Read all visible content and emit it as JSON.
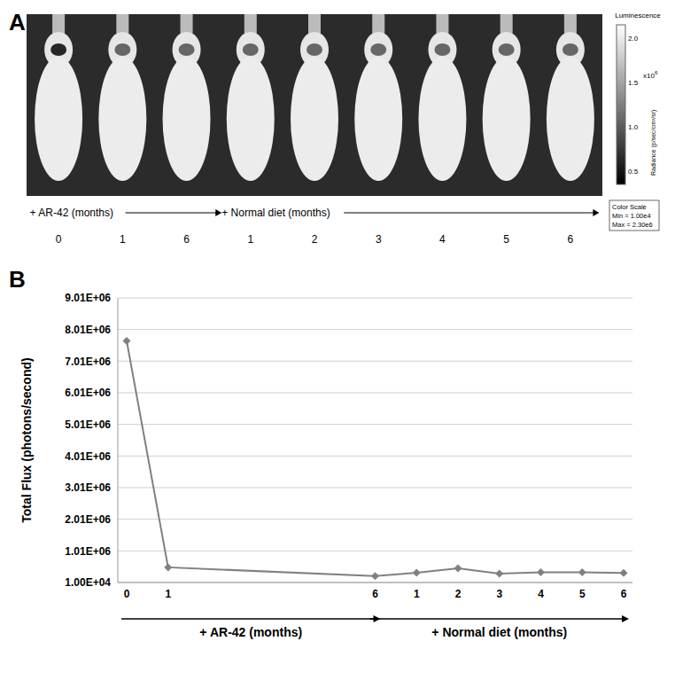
{
  "panel_a": {
    "label": "A",
    "timeline": [
      {
        "label": "+ AR-42 (months)",
        "times": [
          "0",
          "1",
          "6"
        ]
      },
      {
        "label": "+ Normal diet (months)",
        "times": [
          "1",
          "2",
          "3",
          "4",
          "5",
          "6"
        ]
      }
    ],
    "color_scale": {
      "title": "Luminescence",
      "ticks": [
        "2.0",
        "1.5",
        "1.0",
        "0.5"
      ],
      "multiplier": "x10",
      "exponent": "6",
      "unit": "Radiance (p/sec/cm²/sr)",
      "box": [
        "Color Scale",
        "Min = 1.00e4",
        "Max = 2.30e6"
      ]
    }
  },
  "chart_data": {
    "type": "line",
    "title": "B",
    "y_label": "Total Flux (photons/second)",
    "categories": [
      "0",
      "1",
      null,
      null,
      null,
      null,
      "6",
      "1",
      "2",
      "3",
      "4",
      "5",
      "6"
    ],
    "values": [
      7650000,
      490000,
      null,
      null,
      null,
      null,
      210000,
      320000,
      460000,
      290000,
      330000,
      330000,
      310000
    ],
    "color": "#808080",
    "marker": "diamond",
    "ylim": [
      10000,
      9010000
    ],
    "yticks": [
      {
        "value": 10000,
        "label": "1.00E+04"
      },
      {
        "value": 1010000,
        "label": "1.01E+06"
      },
      {
        "value": 2010000,
        "label": "2.01E+06"
      },
      {
        "value": 3010000,
        "label": "3.01E+06"
      },
      {
        "value": 4010000,
        "label": "4.01E+06"
      },
      {
        "value": 5010000,
        "label": "5.01E+06"
      },
      {
        "value": 6010000,
        "label": "6.01E+06"
      },
      {
        "value": 7010000,
        "label": "7.01E+06"
      },
      {
        "value": 8010000,
        "label": "8.01E+06"
      },
      {
        "value": 9010000,
        "label": "9.01E+06"
      }
    ],
    "grid": true,
    "annotations": [
      {
        "text": "+ AR-42 (months)",
        "from": 0,
        "to": 6
      },
      {
        "text": "+ Normal diet (months)",
        "from": 6,
        "to": 12
      }
    ]
  }
}
